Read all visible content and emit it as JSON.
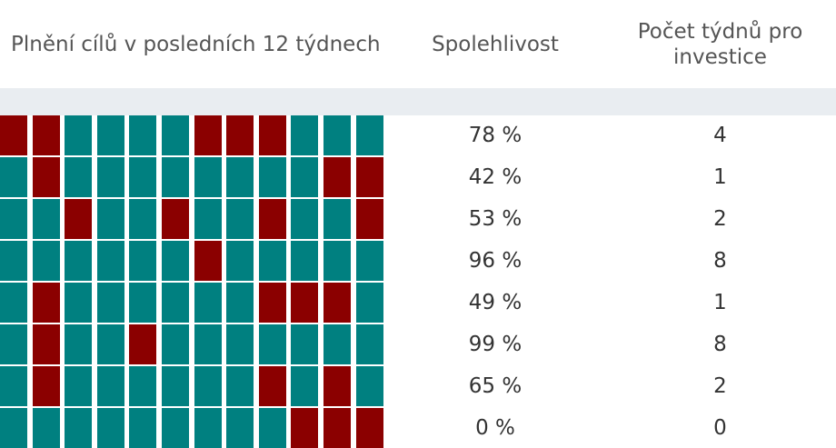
{
  "header": {
    "grid_title": "Plnění cílů v posledních 12 týdnech",
    "reliability_title": "Spolehlivost",
    "weeks_title": "Počet týdnů pro investice"
  },
  "colors": {
    "met": "#008080",
    "missed": "#8b0000",
    "band": "#e9edf1"
  },
  "rows": [
    {
      "cells": [
        0,
        0,
        1,
        1,
        1,
        1,
        0,
        0,
        0,
        1,
        1,
        1
      ],
      "reliability": "78 %",
      "weeks": "4"
    },
    {
      "cells": [
        1,
        0,
        1,
        1,
        1,
        1,
        1,
        1,
        1,
        1,
        0,
        0
      ],
      "reliability": "42 %",
      "weeks": "1"
    },
    {
      "cells": [
        1,
        1,
        0,
        1,
        1,
        0,
        1,
        1,
        0,
        1,
        1,
        0
      ],
      "reliability": "53 %",
      "weeks": "2"
    },
    {
      "cells": [
        1,
        1,
        1,
        1,
        1,
        1,
        0,
        1,
        1,
        1,
        1,
        1
      ],
      "reliability": "96 %",
      "weeks": "8"
    },
    {
      "cells": [
        1,
        0,
        1,
        1,
        1,
        1,
        1,
        1,
        0,
        0,
        0,
        1
      ],
      "reliability": "49 %",
      "weeks": "1"
    },
    {
      "cells": [
        1,
        0,
        1,
        1,
        0,
        1,
        1,
        1,
        1,
        1,
        1,
        1
      ],
      "reliability": "99 %",
      "weeks": "8"
    },
    {
      "cells": [
        1,
        0,
        1,
        1,
        1,
        1,
        1,
        1,
        0,
        1,
        0,
        1
      ],
      "reliability": "65 %",
      "weeks": "2"
    },
    {
      "cells": [
        1,
        1,
        1,
        1,
        1,
        1,
        1,
        1,
        1,
        0,
        0,
        0
      ],
      "reliability": "0 %",
      "weeks": "0"
    }
  ]
}
